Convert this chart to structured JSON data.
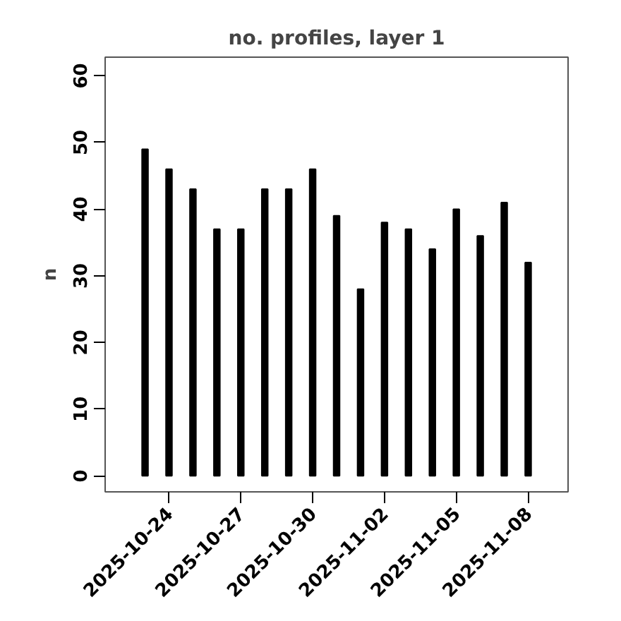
{
  "chart_data": {
    "type": "bar",
    "title": "no. profiles, layer 1",
    "ylabel": "n",
    "x": [
      "2025-10-23",
      "2025-10-24",
      "2025-10-25",
      "2025-10-26",
      "2025-10-27",
      "2025-10-28",
      "2025-10-29",
      "2025-10-30",
      "2025-10-31",
      "2025-11-01",
      "2025-11-02",
      "2025-11-03",
      "2025-11-04",
      "2025-11-05",
      "2025-11-06",
      "2025-11-07",
      "2025-11-08"
    ],
    "values": [
      49,
      46,
      43,
      37,
      37,
      43,
      43,
      46,
      39,
      28,
      38,
      37,
      34,
      40,
      36,
      41,
      32
    ],
    "color": "#000000",
    "xlim": [
      "2025-10-21T08:00",
      "2025-11-09T16:00"
    ],
    "xticks": [
      {
        "value": "2025-10-24",
        "label": "2025-10-24"
      },
      {
        "value": "2025-10-27",
        "label": "2025-10-27"
      },
      {
        "value": "2025-10-30",
        "label": "2025-10-30"
      },
      {
        "value": "2025-11-02",
        "label": "2025-11-02"
      },
      {
        "value": "2025-11-05",
        "label": "2025-11-05"
      },
      {
        "value": "2025-11-08",
        "label": "2025-11-08"
      }
    ],
    "ylim": [
      -2.4,
      62.8
    ],
    "yticks": [
      0,
      10,
      20,
      30,
      40,
      50,
      60
    ],
    "grid": false
  }
}
